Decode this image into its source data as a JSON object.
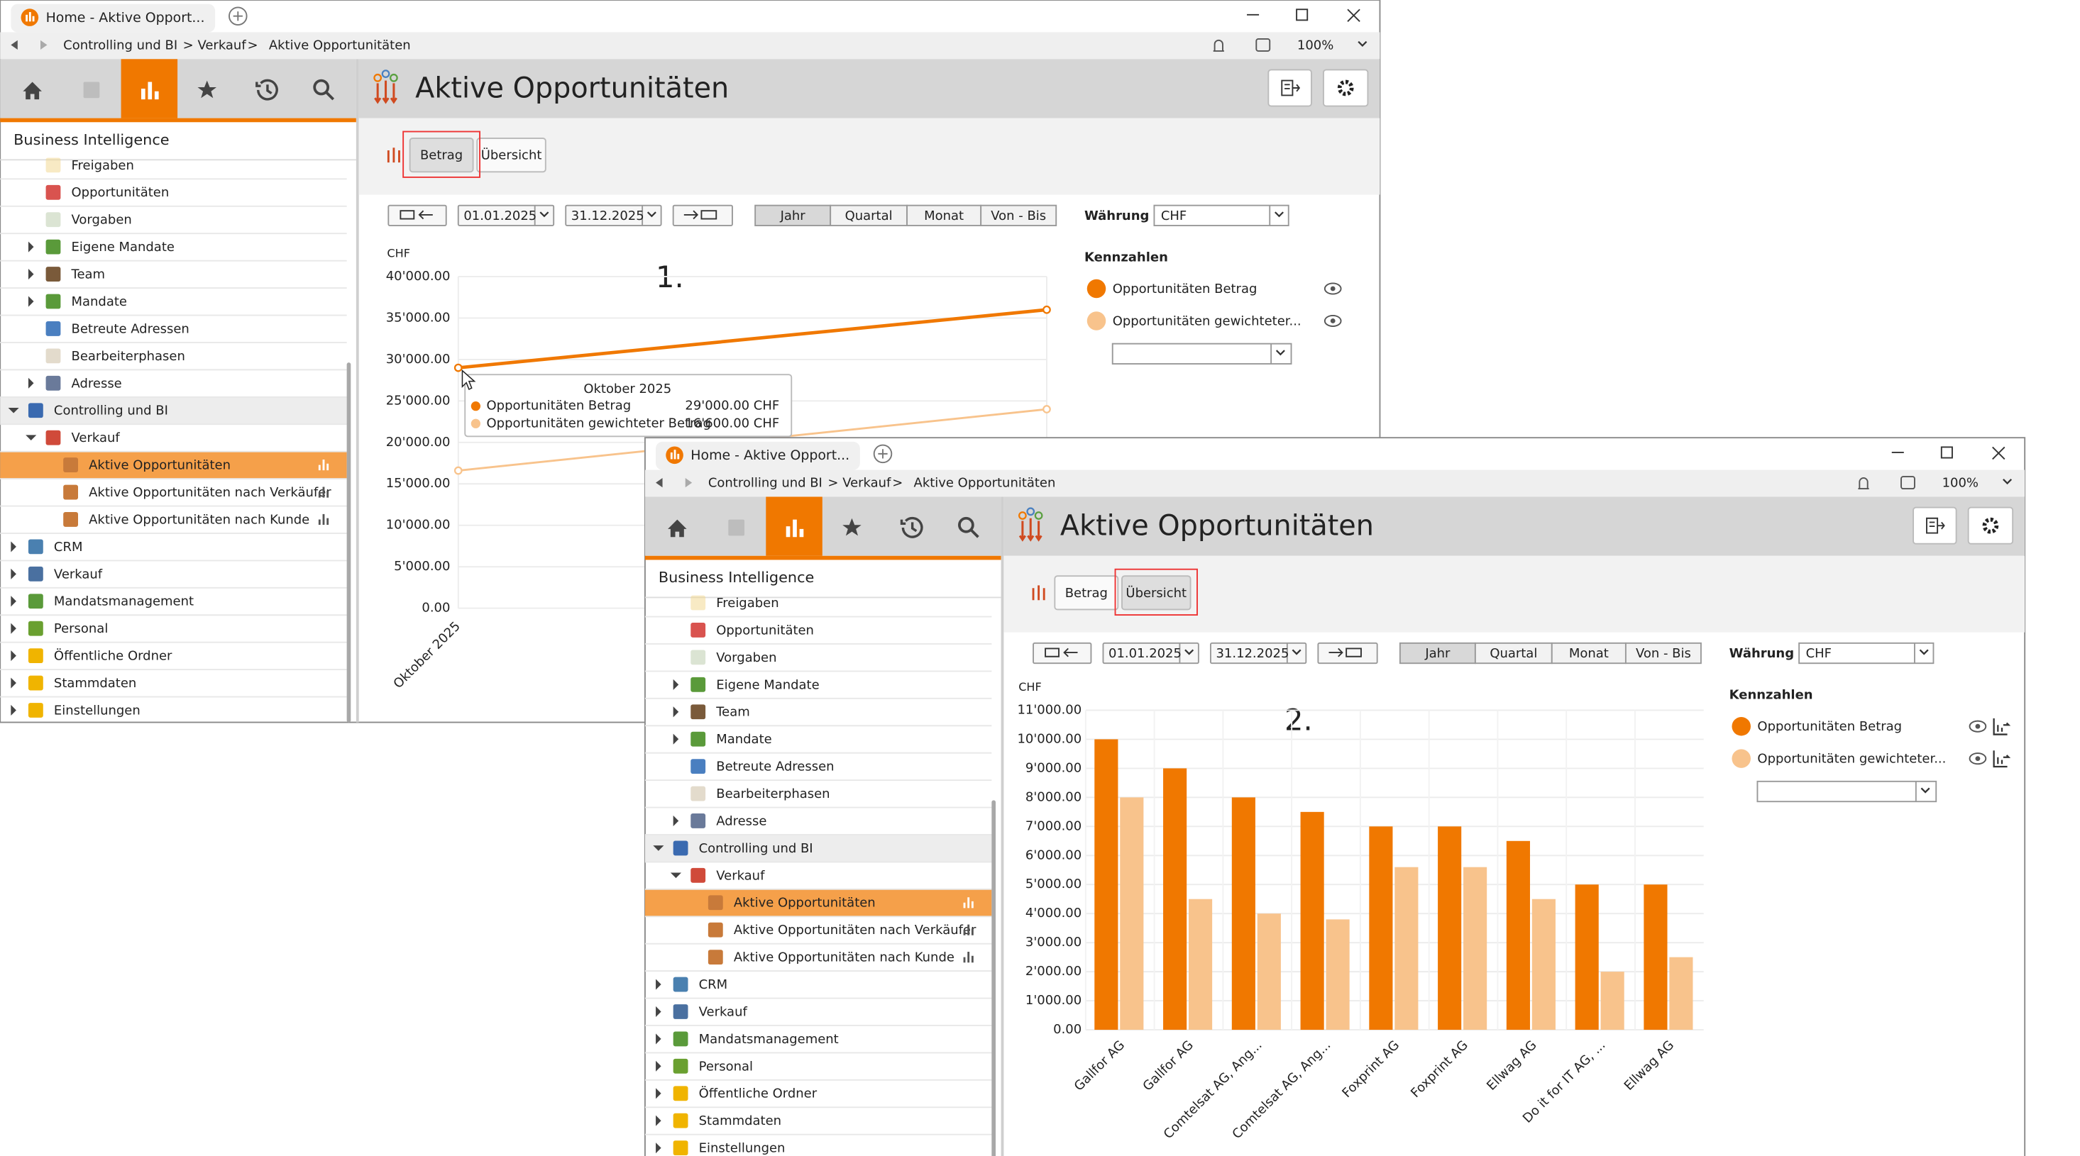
{
  "windows": [
    {
      "tab": "Home - Aktive Opport...",
      "breadcrumb": [
        "Controlling und BI",
        "Verkauf",
        "Aktive Opportunitäten"
      ],
      "breadcrumb_separator": ">",
      "zoom": "100%",
      "sidebar_title": "Business Intelligence",
      "tree": [
        "Freigaben",
        "Opportunitäten",
        "Vorgaben",
        "Eigene Mandate",
        "Team",
        "Mandate",
        "Betreute Adressen",
        "Bearbeiterphasen",
        "Adresse",
        "Controlling und BI",
        "Verkauf",
        "Aktive Opportunitäten",
        "Aktive Opportunitäten nach Verkäufer",
        "Aktive Opportunitäten nach Kunde",
        "CRM",
        "Verkauf",
        "Mandatsmanagement",
        "Personal",
        "Öffentliche Ordner",
        "Stammdaten",
        "Einstellungen"
      ],
      "title": "Aktive Opportunitäten",
      "tabs": [
        "Betrag",
        "Übersicht"
      ],
      "date_from": "01.01.2025",
      "date_to": "31.12.2025",
      "periods": [
        "Jahr",
        "Quartal",
        "Monat",
        "Von - Bis"
      ],
      "currency_label": "Währung",
      "currency": "CHF",
      "kpi_title": "Kennzahlen",
      "kpis": [
        "Opportunitäten Betrag",
        "Opportunitäten gewichteter..."
      ],
      "annotation": "1."
    },
    {
      "tab": "Home - Aktive Opport...",
      "breadcrumb": [
        "Controlling und BI",
        "Verkauf",
        "Aktive Opportunitäten"
      ],
      "breadcrumb_separator": ">",
      "zoom": "100%",
      "sidebar_title": "Business Intelligence",
      "tree": [
        "Freigaben",
        "Opportunitäten",
        "Vorgaben",
        "Eigene Mandate",
        "Team",
        "Mandate",
        "Betreute Adressen",
        "Bearbeiterphasen",
        "Adresse",
        "Controlling und BI",
        "Verkauf",
        "Aktive Opportunitäten",
        "Aktive Opportunitäten nach Verkäufer",
        "Aktive Opportunitäten nach Kunde",
        "CRM",
        "Verkauf",
        "Mandatsmanagement",
        "Personal",
        "Öffentliche Ordner",
        "Stammdaten",
        "Einstellungen"
      ],
      "title": "Aktive Opportunitäten",
      "tabs": [
        "Betrag",
        "Übersicht"
      ],
      "date_from": "01.01.2025",
      "date_to": "31.12.2025",
      "periods": [
        "Jahr",
        "Quartal",
        "Monat",
        "Von - Bis"
      ],
      "currency_label": "Währung",
      "currency": "CHF",
      "kpi_title": "Kennzahlen",
      "kpis": [
        "Opportunitäten Betrag",
        "Opportunitäten gewichteter..."
      ],
      "annotation": "2."
    }
  ],
  "chart_data": [
    {
      "type": "line",
      "ylabel": "CHF",
      "categories": [
        "Oktober 2025",
        null
      ],
      "series": [
        {
          "name": "Opportunitäten Betrag",
          "color": "#f07800",
          "values": [
            29000,
            36000
          ],
          "value_labels": [
            "29'000.00 CHF",
            null
          ]
        },
        {
          "name": "Opportunitäten gewichteter Betrag",
          "color": "#f8c38c",
          "values": [
            16600,
            24000
          ],
          "value_labels": [
            "16'600.00 CHF",
            null
          ]
        }
      ],
      "ylim": [
        0,
        40000
      ],
      "yticks": [
        {
          "value": 0,
          "label": "0.00"
        },
        {
          "value": 5000,
          "label": "5'000.00"
        },
        {
          "value": 10000,
          "label": "10'000.00"
        },
        {
          "value": 15000,
          "label": "15'000.00"
        },
        {
          "value": 20000,
          "label": "20'000.00"
        },
        {
          "value": 25000,
          "label": "25'000.00"
        },
        {
          "value": 30000,
          "label": "30'000.00"
        },
        {
          "value": 35000,
          "label": "35'000.00"
        },
        {
          "value": 40000,
          "label": "40'000.00"
        }
      ],
      "grid": true
    },
    {
      "type": "bar",
      "ylabel": "CHF",
      "categories": [
        "Gallfor AG",
        "Gallfor AG",
        "Comtelsat AG, Ang...",
        "Comtelsat AG, Ang...",
        "Foxprint AG",
        "Foxprint AG",
        "Ellwag AG",
        "Do it for IT AG, ...",
        "Ellwag AG"
      ],
      "series": [
        {
          "color": "#f07800",
          "values": [
            10000,
            9000,
            8000,
            7500,
            7000,
            7000,
            6500,
            5000,
            5000
          ]
        },
        {
          "color": "#f8c38c",
          "values": [
            8000,
            4500,
            4000,
            3800,
            5600,
            5600,
            4500,
            2000,
            2500
          ]
        }
      ],
      "ylim": [
        0,
        11000
      ],
      "yticks": [
        {
          "value": 0,
          "label": "0.00"
        },
        {
          "value": 1000,
          "label": "1'000.00"
        },
        {
          "value": 2000,
          "label": "2'000.00"
        },
        {
          "value": 3000,
          "label": "3'000.00"
        },
        {
          "value": 4000,
          "label": "4'000.00"
        },
        {
          "value": 5000,
          "label": "5'000.00"
        },
        {
          "value": 6000,
          "label": "6'000.00"
        },
        {
          "value": 7000,
          "label": "7'000.00"
        },
        {
          "value": 8000,
          "label": "8'000.00"
        },
        {
          "value": 9000,
          "label": "9'000.00"
        },
        {
          "value": 10000,
          "label": "10'000.00"
        },
        {
          "value": 11000,
          "label": "11'000.00"
        }
      ],
      "grid": true
    }
  ]
}
